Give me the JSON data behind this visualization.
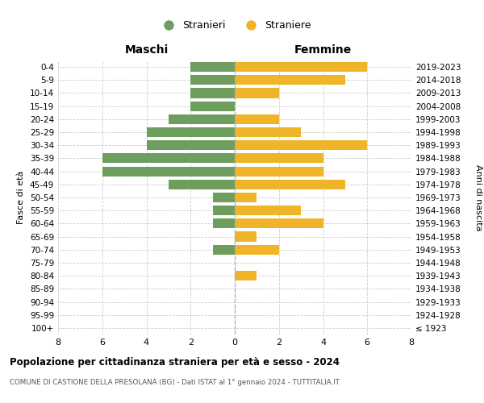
{
  "age_groups": [
    "100+",
    "95-99",
    "90-94",
    "85-89",
    "80-84",
    "75-79",
    "70-74",
    "65-69",
    "60-64",
    "55-59",
    "50-54",
    "45-49",
    "40-44",
    "35-39",
    "30-34",
    "25-29",
    "20-24",
    "15-19",
    "10-14",
    "5-9",
    "0-4"
  ],
  "birth_years": [
    "≤ 1923",
    "1924-1928",
    "1929-1933",
    "1934-1938",
    "1939-1943",
    "1944-1948",
    "1949-1953",
    "1954-1958",
    "1959-1963",
    "1964-1968",
    "1969-1973",
    "1974-1978",
    "1979-1983",
    "1984-1988",
    "1989-1993",
    "1994-1998",
    "1999-2003",
    "2004-2008",
    "2009-2013",
    "2014-2018",
    "2019-2023"
  ],
  "maschi": [
    0,
    0,
    0,
    0,
    0,
    0,
    1,
    0,
    1,
    1,
    1,
    3,
    6,
    6,
    4,
    4,
    3,
    2,
    2,
    2,
    2
  ],
  "femmine": [
    0,
    0,
    0,
    0,
    1,
    0,
    2,
    1,
    4,
    3,
    1,
    5,
    4,
    4,
    6,
    3,
    2,
    0,
    2,
    5,
    6
  ],
  "color_maschi": "#6d9e5e",
  "color_femmine": "#f0b429",
  "background_color": "#ffffff",
  "grid_color": "#cccccc",
  "title": "Popolazione per cittadinanza straniera per età e sesso - 2024",
  "subtitle": "COMUNE DI CASTIONE DELLA PRESOLANA (BG) - Dati ISTAT al 1° gennaio 2024 - TUTTITALIA.IT",
  "xlabel_left": "Maschi",
  "xlabel_right": "Femmine",
  "ylabel": "Fasce di età",
  "ylabel_right": "Anni di nascita",
  "legend_maschi": "Stranieri",
  "legend_femmine": "Straniere",
  "xlim": 8
}
